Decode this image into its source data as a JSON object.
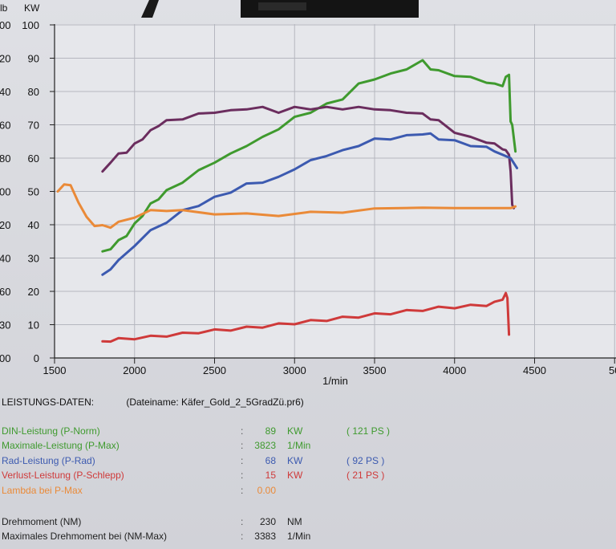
{
  "chart_data": {
    "type": "line",
    "xlabel": "1/min",
    "x_ticks": [
      "1500",
      "2000",
      "2500",
      "3000",
      "3500",
      "4000",
      "4500",
      "50"
    ],
    "xlim": [
      1500,
      5000
    ],
    "y_left_header": "lb",
    "y_right_header": "KW",
    "ylim": [
      0,
      100
    ],
    "y_ticks": [
      "0",
      "10",
      "20",
      "30",
      "40",
      "50",
      "60",
      "70",
      "80",
      "90",
      "100"
    ],
    "y_left_ticks": [
      "00",
      "30",
      "60",
      "40",
      "20",
      "00",
      "80",
      "60",
      "40",
      "20",
      "00"
    ],
    "grid": true,
    "series": [
      {
        "color": "#3f9a2e",
        "x": [
          1800,
          1850,
          1900,
          1950,
          2000,
          2050,
          2100,
          2150,
          2200,
          2300,
          2400,
          2500,
          2600,
          2700,
          2800,
          2900,
          3000,
          3100,
          3200,
          3300,
          3400,
          3500,
          3600,
          3700,
          3800,
          3850,
          3900,
          4000,
          4100,
          4200,
          4250,
          4300,
          4320,
          4340,
          4350,
          4360,
          4380
        ],
        "y": [
          32,
          33,
          35,
          37,
          40,
          43,
          46,
          48,
          50,
          53,
          56,
          59,
          61,
          64,
          66,
          69,
          72,
          74,
          76,
          78,
          82,
          84,
          85,
          87,
          89,
          87,
          86,
          85,
          84,
          83,
          82,
          82,
          84,
          85,
          71,
          70,
          62
        ]
      },
      {
        "color": "#6b2d5e",
        "x": [
          1800,
          1850,
          1900,
          1950,
          2000,
          2050,
          2100,
          2150,
          2200,
          2300,
          2400,
          2500,
          2600,
          2700,
          2800,
          2900,
          3000,
          3100,
          3200,
          3300,
          3400,
          3500,
          3600,
          3700,
          3800,
          3850,
          3900,
          4000,
          4100,
          4200,
          4250,
          4300,
          4320,
          4340,
          4350,
          4360,
          4370
        ],
        "y": [
          56,
          59,
          61,
          62,
          64,
          66,
          68,
          70,
          71,
          72,
          73,
          74,
          74,
          75,
          75,
          74,
          75,
          75,
          75,
          75,
          75,
          75,
          74,
          74,
          73,
          72,
          71,
          68,
          66,
          65,
          64,
          63,
          62,
          61,
          56,
          46,
          45
        ]
      },
      {
        "color": "#3c5ab0",
        "x": [
          1800,
          1850,
          1900,
          2000,
          2100,
          2200,
          2300,
          2400,
          2500,
          2600,
          2700,
          2800,
          2900,
          3000,
          3100,
          3200,
          3300,
          3400,
          3500,
          3600,
          3700,
          3800,
          3850,
          3900,
          4000,
          4100,
          4200,
          4250,
          4300,
          4350,
          4390
        ],
        "y": [
          25,
          27,
          29,
          34,
          38,
          41,
          44,
          46,
          48,
          50,
          52,
          53,
          54,
          57,
          59,
          61,
          62,
          64,
          65.5,
          66,
          66.5,
          67.5,
          67,
          66,
          65,
          64,
          63,
          62,
          61,
          60,
          57
        ]
      },
      {
        "color": "#ea8a38",
        "x": [
          1520,
          1560,
          1600,
          1650,
          1700,
          1750,
          1800,
          1850,
          1900,
          2000,
          2100,
          2200,
          2300,
          2500,
          2700,
          2900,
          3100,
          3300,
          3500,
          3800,
          4000,
          4200,
          4350,
          4380
        ],
        "y": [
          50,
          52.5,
          51.5,
          47,
          42,
          40,
          39.5,
          39.5,
          40.5,
          42.5,
          44,
          44.5,
          44,
          43.5,
          43,
          43,
          43.5,
          44,
          44.5,
          45.5,
          45,
          45,
          45,
          45.5
        ]
      },
      {
        "color": "#cf3a3a",
        "x": [
          1800,
          1850,
          1900,
          2000,
          2100,
          2200,
          2300,
          2400,
          2500,
          2600,
          2700,
          2800,
          2900,
          3000,
          3100,
          3200,
          3300,
          3400,
          3500,
          3600,
          3700,
          3800,
          3900,
          4000,
          4100,
          4200,
          4250,
          4300,
          4320,
          4330,
          4340
        ],
        "y": [
          5,
          5.3,
          5.6,
          6,
          6.3,
          6.8,
          7.2,
          7.8,
          8.2,
          8.6,
          9,
          9.5,
          10,
          10.5,
          11,
          11.5,
          12,
          12.5,
          13,
          13.5,
          14,
          14.5,
          15,
          15.3,
          15.6,
          16,
          16.5,
          17.5,
          19.5,
          18,
          7
        ]
      }
    ]
  },
  "panel": {
    "title": "LEISTUNGS-DATEN:",
    "filename": "(Dateiname: Käfer_Gold_2_5GradZü.pr6)",
    "rows": [
      {
        "label": "DIN-Leistung (P-Norm)",
        "colon": ":",
        "value": "89",
        "unit": "KW",
        "ps": "( 121 PS )",
        "color": "#3f9a2e"
      },
      {
        "label": "Maximale-Leistung (P-Max)",
        "colon": ":",
        "value": "3823",
        "unit": "1/Min",
        "ps": "",
        "color": "#3f9a2e"
      },
      {
        "label": "Rad-Leistung (P-Rad)",
        "colon": ":",
        "value": "68",
        "unit": "KW",
        "ps": "( 92 PS )",
        "color": "#3c5ab0"
      },
      {
        "label": "Verlust-Leistung (P-Schlepp)",
        "colon": ":",
        "value": "15",
        "unit": "KW",
        "ps": "( 21 PS )",
        "color": "#cf3a3a"
      },
      {
        "label": "Lambda bei P-Max",
        "colon": ":",
        "value": "0.00",
        "unit": "",
        "ps": "",
        "color": "#ea8a38"
      },
      {
        "label": "Drehmoment (NM)",
        "colon": ":",
        "value": "230",
        "unit": "NM",
        "ps": "",
        "color": "#222222"
      },
      {
        "label": "Maximales Drehmoment bei (NM-Max)",
        "colon": ":",
        "value": "3383",
        "unit": "1/Min",
        "ps": "",
        "color": "#222222"
      }
    ]
  }
}
